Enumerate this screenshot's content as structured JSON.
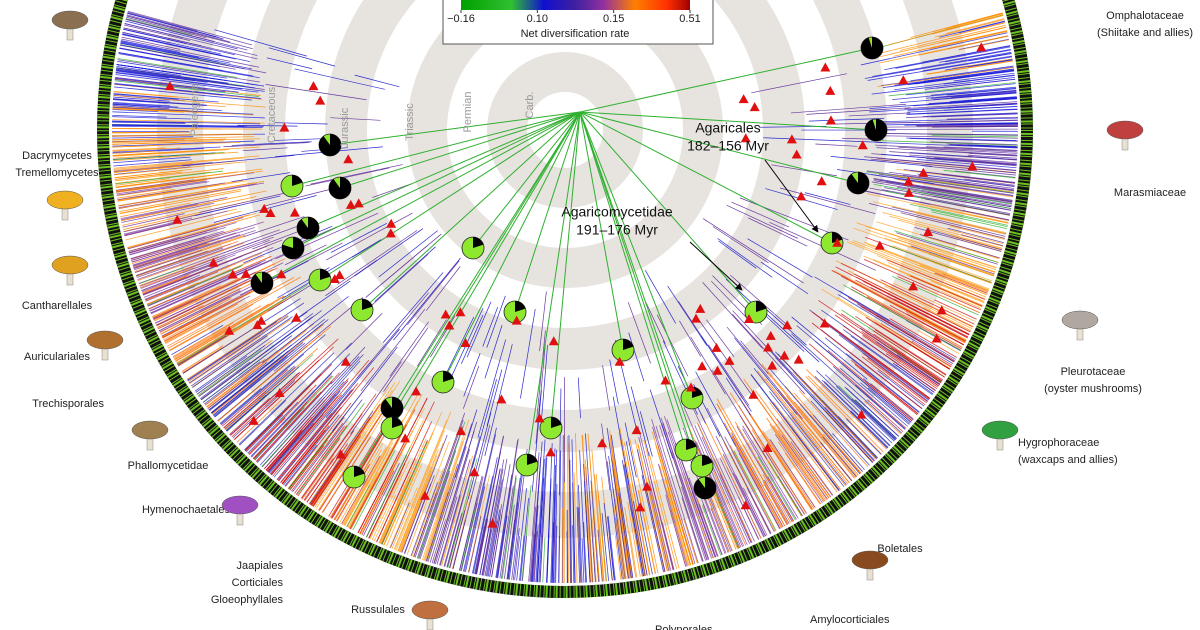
{
  "colorbar": {
    "label": "Net diversification rate",
    "ticks": [
      {
        "value": -0.16,
        "label": "−0.16"
      },
      {
        "value": 0.1,
        "label": "0.10"
      },
      0.15,
      0.51
    ]
  },
  "era_labels": [
    "Paleogene",
    "Cretaceous",
    "Jurassic",
    "Triassic",
    "Permian",
    "Carb."
  ],
  "annotations": [
    {
      "title": "Agaricales",
      "range": "182–156 Myr"
    },
    {
      "title": "Agaricomycetidae",
      "range": "191–176 Myr"
    }
  ],
  "clade_labels": [
    [
      "Omphalotaceae",
      "(Shiitake and allies)"
    ],
    [
      "Marasmiaceae"
    ],
    [
      "Pleurotaceae",
      "(oyster mushrooms)"
    ],
    [
      "Hygrophoraceae",
      "(waxcaps and allies)"
    ],
    [
      "Boletales"
    ],
    [
      "Amylocorticiales"
    ],
    [
      "Polyporales"
    ],
    [
      "Russulales"
    ],
    [
      "Jaapiales",
      "Corticiales",
      "Gloeophyllales"
    ],
    [
      "Hymenochaetales"
    ],
    [
      "Phallomycetidae"
    ],
    [
      "Trechisporales"
    ],
    [
      "Auriculariales"
    ],
    [
      "Cantharellales"
    ],
    [
      "Dacrymycetes",
      "Tremellomycetes"
    ]
  ]
}
